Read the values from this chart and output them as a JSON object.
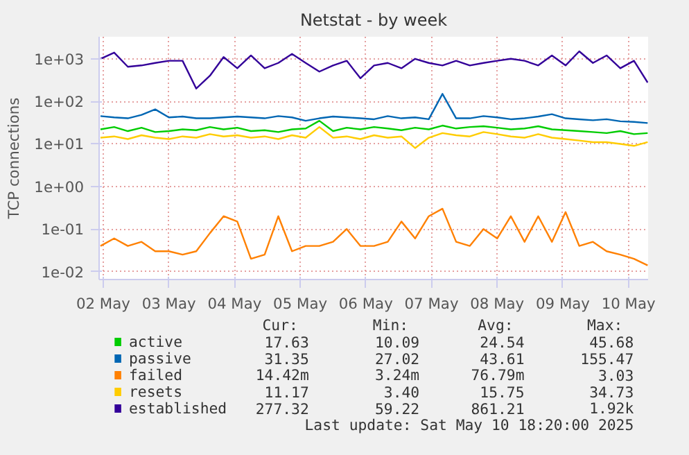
{
  "chart_data": {
    "type": "line",
    "title": "Netstat - by week",
    "ylabel": "TCP connections",
    "log": true,
    "grid": true,
    "legend": "bottom",
    "x": [
      "2025-05-02T11:00",
      "2025-05-02T16:00",
      "2025-05-02T21:00",
      "2025-05-03T02:00",
      "2025-05-03T07:00",
      "2025-05-03T12:00",
      "2025-05-03T17:00",
      "2025-05-03T22:00",
      "2025-05-04T03:00",
      "2025-05-04T08:00",
      "2025-05-04T13:00",
      "2025-05-04T18:00",
      "2025-05-04T23:00",
      "2025-05-05T04:00",
      "2025-05-05T09:00",
      "2025-05-05T14:00",
      "2025-05-05T19:00",
      "2025-05-06T00:00",
      "2025-05-06T05:00",
      "2025-05-06T10:00",
      "2025-05-06T15:00",
      "2025-05-06T20:00",
      "2025-05-07T01:00",
      "2025-05-07T06:00",
      "2025-05-07T11:00",
      "2025-05-07T16:00",
      "2025-05-07T21:00",
      "2025-05-08T02:00",
      "2025-05-08T07:00",
      "2025-05-08T12:00",
      "2025-05-08T17:00",
      "2025-05-08T22:00",
      "2025-05-09T03:00",
      "2025-05-09T08:00",
      "2025-05-09T13:00",
      "2025-05-09T18:00",
      "2025-05-09T23:00",
      "2025-05-10T04:00",
      "2025-05-10T09:00",
      "2025-05-10T14:00",
      "2025-05-10T19:00"
    ],
    "xlim": [
      "2025-05-02T10:30",
      "2025-05-10T19:10"
    ],
    "xticks": [
      {
        "value": "2025-05-02T12:00",
        "label": "02 May"
      },
      {
        "value": "2025-05-03T12:00",
        "label": "03 May"
      },
      {
        "value": "2025-05-04T12:00",
        "label": "04 May"
      },
      {
        "value": "2025-05-05T12:00",
        "label": "05 May"
      },
      {
        "value": "2025-05-06T12:00",
        "label": "06 May"
      },
      {
        "value": "2025-05-07T12:00",
        "label": "07 May"
      },
      {
        "value": "2025-05-08T12:00",
        "label": "08 May"
      },
      {
        "value": "2025-05-09T12:00",
        "label": "09 May"
      },
      {
        "value": "2025-05-10T12:00",
        "label": "10 May"
      }
    ],
    "ylim": [
      0.0065,
      3300
    ],
    "yticks": [
      {
        "value": 0.01,
        "label": "1e-02"
      },
      {
        "value": 0.1,
        "label": "1e-01"
      },
      {
        "value": 1,
        "label": "1e+00"
      },
      {
        "value": 10,
        "label": "1e+01"
      },
      {
        "value": 100,
        "label": "1e+02"
      },
      {
        "value": 1000,
        "label": "1e+03"
      }
    ],
    "series": [
      {
        "name": "active",
        "color": "#00cc00",
        "values": [
          22,
          25,
          20,
          24,
          19,
          20,
          22,
          21,
          25,
          22,
          24,
          20,
          21,
          19,
          22,
          23,
          35,
          20,
          24,
          22,
          25,
          23,
          21,
          24,
          22,
          27,
          23,
          25,
          26,
          24,
          22,
          23,
          26,
          22,
          21,
          20,
          19,
          18,
          20,
          17,
          18
        ]
      },
      {
        "name": "passive",
        "color": "#0066b3",
        "values": [
          45,
          42,
          40,
          48,
          65,
          42,
          44,
          40,
          40,
          42,
          44,
          42,
          40,
          45,
          42,
          35,
          40,
          44,
          42,
          40,
          38,
          45,
          40,
          42,
          38,
          150,
          40,
          40,
          45,
          42,
          38,
          40,
          44,
          50,
          40,
          38,
          36,
          38,
          34,
          33,
          31
        ]
      },
      {
        "name": "failed",
        "color": "#ff8000",
        "values": [
          0.04,
          0.06,
          0.04,
          0.05,
          0.03,
          0.03,
          0.025,
          0.03,
          0.08,
          0.2,
          0.15,
          0.02,
          0.025,
          0.2,
          0.03,
          0.04,
          0.04,
          0.05,
          0.1,
          0.04,
          0.04,
          0.05,
          0.15,
          0.06,
          0.2,
          0.3,
          0.05,
          0.04,
          0.1,
          0.06,
          0.2,
          0.05,
          0.2,
          0.05,
          0.25,
          0.04,
          0.05,
          0.03,
          0.025,
          0.02,
          0.014
        ]
      },
      {
        "name": "resets",
        "color": "#ffcc00",
        "values": [
          14,
          15,
          13,
          16,
          14,
          13,
          15,
          14,
          17,
          15,
          16,
          14,
          15,
          13,
          16,
          14,
          25,
          14,
          15,
          13,
          16,
          14,
          15,
          8,
          14,
          18,
          16,
          15,
          19,
          17,
          15,
          14,
          17,
          14,
          13,
          12,
          11,
          11,
          10,
          9,
          11
        ]
      },
      {
        "name": "established",
        "color": "#330099",
        "values": [
          1000,
          1400,
          650,
          700,
          800,
          900,
          900,
          200,
          400,
          1100,
          600,
          1200,
          600,
          800,
          1300,
          800,
          500,
          700,
          900,
          350,
          700,
          800,
          600,
          1000,
          800,
          700,
          900,
          700,
          800,
          900,
          1000,
          900,
          700,
          1200,
          700,
          1500,
          800,
          1200,
          600,
          900,
          277
        ]
      }
    ],
    "annotations": [
      "Cur:",
      "Min:",
      "Avg:",
      "Max:",
      "17.63",
      "10.09",
      "24.54",
      "45.68",
      "31.35",
      "27.02",
      "43.61",
      "155.47",
      "14.42m",
      "3.24m",
      "76.79m",
      "3.03",
      "11.17",
      "3.40",
      "15.75",
      "34.73",
      "277.32",
      "59.22",
      "861.21",
      "1.92k",
      "Last update: Sat May 10 18:20:00 2025"
    ]
  }
}
